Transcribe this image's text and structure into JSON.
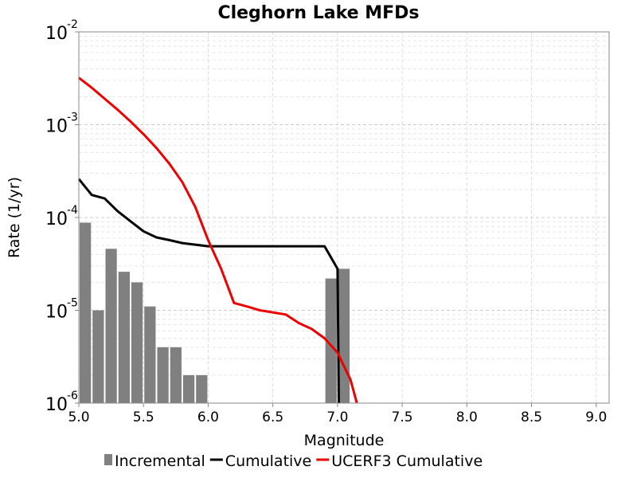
{
  "chart_data": {
    "type": "line",
    "title": "Cleghorn Lake MFDs",
    "xlabel": "Magnitude",
    "ylabel": "Rate (1/yr)",
    "xlim": [
      5.0,
      9.1
    ],
    "ylim": [
      1e-06,
      0.01
    ],
    "yscale": "log",
    "grid": true,
    "legend_position": "bottom",
    "xticks": [
      "5.0",
      "5.5",
      "6.0",
      "6.5",
      "7.0",
      "7.5",
      "8.0",
      "8.5",
      "9.0"
    ],
    "yticks": [
      {
        "base": "10",
        "exp": "-2",
        "value": 0.01
      },
      {
        "base": "10",
        "exp": "-3",
        "value": 0.001
      },
      {
        "base": "10",
        "exp": "-4",
        "value": 0.0001
      },
      {
        "base": "10",
        "exp": "-5",
        "value": 1e-05
      },
      {
        "base": "10",
        "exp": "-6",
        "value": 1e-06
      }
    ],
    "series": [
      {
        "name": "Incremental",
        "kind": "bar",
        "color": "#808080",
        "bin_width": 0.1,
        "x": [
          5.0,
          5.1,
          5.2,
          5.3,
          5.4,
          5.5,
          5.6,
          5.7,
          5.8,
          5.9,
          6.9,
          7.0
        ],
        "values": [
          8.8e-05,
          1e-05,
          4.6e-05,
          2.6e-05,
          2e-05,
          1.1e-05,
          4e-06,
          4e-06,
          2e-06,
          2e-06,
          2.2e-05,
          2.8e-05
        ]
      },
      {
        "name": "Cumulative",
        "kind": "line",
        "color": "#000000",
        "x": [
          5.0,
          5.1,
          5.2,
          5.3,
          5.4,
          5.5,
          5.6,
          5.7,
          5.8,
          5.9,
          6.0,
          6.9,
          7.0,
          7.0,
          7.01
        ],
        "values": [
          0.00026,
          0.000175,
          0.00016,
          0.000117,
          9.1e-05,
          7.1e-05,
          6.1e-05,
          5.7e-05,
          5.3e-05,
          5.1e-05,
          4.9e-05,
          4.9e-05,
          2.8e-05,
          2.8e-05,
          1e-06
        ]
      },
      {
        "name": "UCERF3 Cumulative",
        "kind": "line",
        "color": "#ee0000",
        "x": [
          5.0,
          5.1,
          5.2,
          5.3,
          5.4,
          5.5,
          5.6,
          5.7,
          5.8,
          5.9,
          6.0,
          6.1,
          6.2,
          6.3,
          6.4,
          6.5,
          6.6,
          6.7,
          6.8,
          6.9,
          7.0,
          7.1,
          7.15
        ],
        "values": [
          0.0032,
          0.0025,
          0.0019,
          0.00145,
          0.00108,
          0.00079,
          0.00056,
          0.00038,
          0.00024,
          0.00013,
          5.7e-05,
          2.8e-05,
          1.2e-05,
          1.1e-05,
          1e-05,
          9.5e-06,
          9e-06,
          7.3e-06,
          6.3e-06,
          5e-06,
          3.5e-06,
          1.8e-06,
          1e-06
        ]
      }
    ]
  }
}
